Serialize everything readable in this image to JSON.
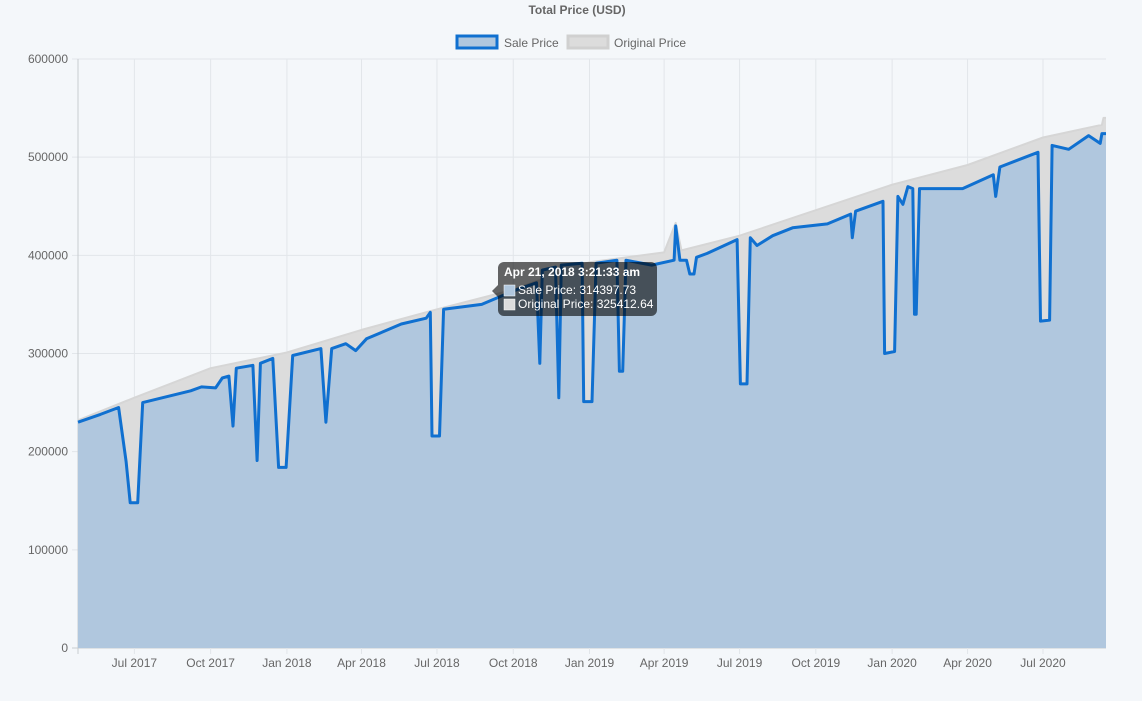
{
  "chart_data": {
    "type": "area",
    "title": "Total Price (USD)",
    "xlabel": "",
    "ylabel": "",
    "ylim": [
      0,
      600000
    ],
    "xlim": [
      "2017-04-24",
      "2020-09-15"
    ],
    "grid": true,
    "legend_placement": "top",
    "y_ticks": [
      "0",
      "100000",
      "200000",
      "300000",
      "400000",
      "500000",
      "600000"
    ],
    "x_ticks": [
      {
        "date": "2017-07-01",
        "label": "Jul 2017"
      },
      {
        "date": "2017-10-01",
        "label": "Oct 2017"
      },
      {
        "date": "2018-01-01",
        "label": "Jan 2018"
      },
      {
        "date": "2018-04-01",
        "label": "Apr 2018"
      },
      {
        "date": "2018-07-01",
        "label": "Jul 2018"
      },
      {
        "date": "2018-10-01",
        "label": "Oct 2018"
      },
      {
        "date": "2019-01-01",
        "label": "Jan 2019"
      },
      {
        "date": "2019-04-01",
        "label": "Apr 2019"
      },
      {
        "date": "2019-07-01",
        "label": "Jul 2019"
      },
      {
        "date": "2019-10-01",
        "label": "Oct 2019"
      },
      {
        "date": "2020-01-01",
        "label": "Jan 2020"
      },
      {
        "date": "2020-04-01",
        "label": "Apr 2020"
      },
      {
        "date": "2020-07-01",
        "label": "Jul 2020"
      }
    ],
    "series": [
      {
        "name": "Original Price",
        "color": "#d6d6d6",
        "fill": "#dcdcdc",
        "points": [
          [
            "2017-04-24",
            232000
          ],
          [
            "2017-07-01",
            255000
          ],
          [
            "2017-10-01",
            285000
          ],
          [
            "2018-01-01",
            301000
          ],
          [
            "2018-04-01",
            324000
          ],
          [
            "2018-07-01",
            345000
          ],
          [
            "2018-10-01",
            365000
          ],
          [
            "2019-01-01",
            393000
          ],
          [
            "2019-04-01",
            403000
          ],
          [
            "2019-04-15",
            433000
          ],
          [
            "2019-04-22",
            405000
          ],
          [
            "2019-07-01",
            420000
          ],
          [
            "2019-10-01",
            446000
          ],
          [
            "2020-01-01",
            472000
          ],
          [
            "2020-04-01",
            492000
          ],
          [
            "2020-07-01",
            520000
          ],
          [
            "2020-09-10",
            533000
          ],
          [
            "2020-09-12",
            540000
          ],
          [
            "2020-09-15",
            540000
          ]
        ]
      },
      {
        "name": "Sale Price",
        "color": "#1070d0",
        "fill": "#b0c7de",
        "points": [
          [
            "2017-04-24",
            230000
          ],
          [
            "2017-05-21",
            238000
          ],
          [
            "2017-06-12",
            245000
          ],
          [
            "2017-06-21",
            190000
          ],
          [
            "2017-06-26",
            148000
          ],
          [
            "2017-07-05",
            148000
          ],
          [
            "2017-07-11",
            250000
          ],
          [
            "2017-09-07",
            262000
          ],
          [
            "2017-09-20",
            266000
          ],
          [
            "2017-10-07",
            265000
          ],
          [
            "2017-10-15",
            275000
          ],
          [
            "2017-10-23",
            277000
          ],
          [
            "2017-10-28",
            226000
          ],
          [
            "2017-11-01",
            285000
          ],
          [
            "2017-11-21",
            288000
          ],
          [
            "2017-11-26",
            191000
          ],
          [
            "2017-11-30",
            290000
          ],
          [
            "2017-12-15",
            295000
          ],
          [
            "2017-12-22",
            184000
          ],
          [
            "2017-12-31",
            184000
          ],
          [
            "2018-01-08",
            298000
          ],
          [
            "2018-02-11",
            305000
          ],
          [
            "2018-02-17",
            230000
          ],
          [
            "2018-02-24",
            305000
          ],
          [
            "2018-03-13",
            310000
          ],
          [
            "2018-03-25",
            303000
          ],
          [
            "2018-04-07",
            315000
          ],
          [
            "2018-05-19",
            330000
          ],
          [
            "2018-06-18",
            336000
          ],
          [
            "2018-06-23",
            342000
          ],
          [
            "2018-06-25",
            216000
          ],
          [
            "2018-07-04",
            216000
          ],
          [
            "2018-07-09",
            345000
          ],
          [
            "2018-08-24",
            350000
          ],
          [
            "2018-10-05",
            365000
          ],
          [
            "2018-10-29",
            372000
          ],
          [
            "2018-11-02",
            290000
          ],
          [
            "2018-11-05",
            385000
          ],
          [
            "2018-11-21",
            388000
          ],
          [
            "2018-11-25",
            255000
          ],
          [
            "2018-11-28",
            390000
          ],
          [
            "2018-12-23",
            392000
          ],
          [
            "2018-12-25",
            251000
          ],
          [
            "2019-01-04",
            251000
          ],
          [
            "2019-01-09",
            392000
          ],
          [
            "2019-02-03",
            395000
          ],
          [
            "2019-02-06",
            282000
          ],
          [
            "2019-02-10",
            282000
          ],
          [
            "2019-02-14",
            395000
          ],
          [
            "2019-03-17",
            390000
          ],
          [
            "2019-04-13",
            395000
          ],
          [
            "2019-04-15",
            430000
          ],
          [
            "2019-04-20",
            395000
          ],
          [
            "2019-04-28",
            395000
          ],
          [
            "2019-05-02",
            381000
          ],
          [
            "2019-05-07",
            381000
          ],
          [
            "2019-05-10",
            398000
          ],
          [
            "2019-05-23",
            402000
          ],
          [
            "2019-06-28",
            416000
          ],
          [
            "2019-07-02",
            269000
          ],
          [
            "2019-07-10",
            269000
          ],
          [
            "2019-07-14",
            418000
          ],
          [
            "2019-07-22",
            410000
          ],
          [
            "2019-08-10",
            420000
          ],
          [
            "2019-09-03",
            428000
          ],
          [
            "2019-10-15",
            432000
          ],
          [
            "2019-11-12",
            442000
          ],
          [
            "2019-11-14",
            418000
          ],
          [
            "2019-11-18",
            445000
          ],
          [
            "2019-12-21",
            455000
          ],
          [
            "2019-12-23",
            300000
          ],
          [
            "2020-01-04",
            302000
          ],
          [
            "2020-01-08",
            460000
          ],
          [
            "2020-01-14",
            452000
          ],
          [
            "2020-01-20",
            470000
          ],
          [
            "2020-01-26",
            468000
          ],
          [
            "2020-01-28",
            340000
          ],
          [
            "2020-01-30",
            340000
          ],
          [
            "2020-02-03",
            468000
          ],
          [
            "2020-03-26",
            468000
          ],
          [
            "2020-05-02",
            482000
          ],
          [
            "2020-05-05",
            460000
          ],
          [
            "2020-05-10",
            490000
          ],
          [
            "2020-06-25",
            505000
          ],
          [
            "2020-06-28",
            333000
          ],
          [
            "2020-07-09",
            334000
          ],
          [
            "2020-07-12",
            512000
          ],
          [
            "2020-08-01",
            508000
          ],
          [
            "2020-08-25",
            522000
          ],
          [
            "2020-09-08",
            514000
          ],
          [
            "2020-09-10",
            524000
          ],
          [
            "2020-09-15",
            524000
          ]
        ]
      }
    ],
    "tooltip": {
      "title": "Apr 21, 2018 3:21:33 am",
      "lines": [
        "Sale Price: 314397.73",
        "Original Price: 325412.64"
      ]
    }
  }
}
